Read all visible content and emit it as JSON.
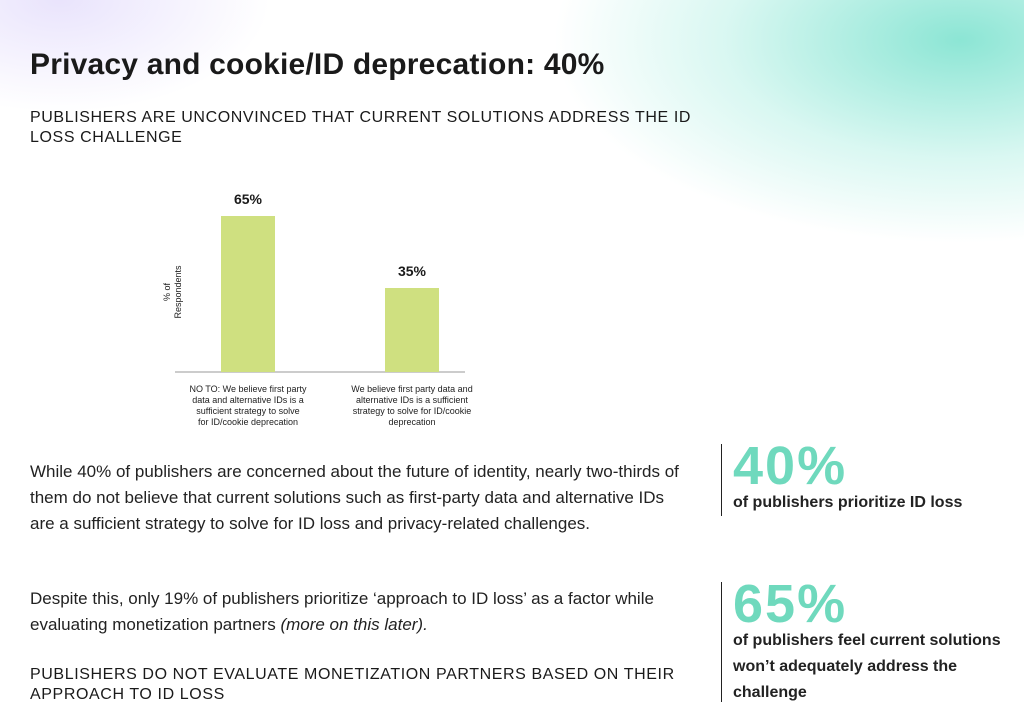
{
  "page": {
    "title": "Privacy and cookie/ID deprecation: 40%",
    "heading_1": "PUBLISHERS ARE UNCONVINCED THAT CURRENT SOLUTIONS ADDRESS THE ID LOSS CHALLENGE",
    "paragraph_1": "While 40% of publishers are concerned about the future of identity, nearly two-thirds of them do not believe that current solutions such as first-party data and alternative IDs are a sufficient strategy to solve for ID loss and privacy-related challenges.",
    "paragraph_2_main": "Despite this, only 19% of publishers prioritize ‘approach to ID loss’ as a factor while evaluating monetization partners ",
    "paragraph_2_italic": "(more on this later).",
    "heading_2": "PUBLISHERS DO NOT EVALUATE MONETIZATION PARTNERS BASED ON THEIR APPROACH TO ID LOSS"
  },
  "stats": [
    {
      "value": "40%",
      "caption": "of publishers prioritize ID loss"
    },
    {
      "value": "65%",
      "caption": "of publishers feel current solutions won’t adequately address the challenge"
    }
  ],
  "colors": {
    "bar": "#cfe080",
    "stat_accent": "#6fd9bd",
    "gradient_mint": "#78e1cd",
    "gradient_lavender": "#d7cdfa"
  },
  "chart_data": {
    "type": "bar",
    "title": "",
    "xlabel": "",
    "ylabel": "% of Respondents",
    "ylim": [
      0,
      100
    ],
    "grid": false,
    "categories": [
      "NO TO: We believe first party data and alternative IDs is a sufficient strategy to solve for ID/cookie deprecation",
      "We believe first party data and alternative IDs is a sufficient strategy to solve for ID/cookie deprecation"
    ],
    "category_lines": [
      [
        "NO TO: We believe first party",
        "data and alternative IDs is a",
        "sufficient strategy to solve",
        "for ID/cookie deprecation"
      ],
      [
        "We believe first party data and",
        "alternative IDs is a sufficient",
        "strategy to solve for ID/cookie",
        "deprecation"
      ]
    ],
    "ylabel_lines": [
      "% of",
      "Respondents"
    ],
    "values": [
      65,
      35
    ],
    "data_labels": [
      "65%",
      "35%"
    ]
  }
}
